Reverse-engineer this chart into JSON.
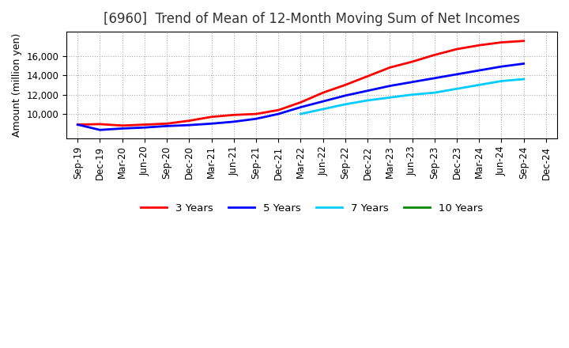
{
  "title": "[6960]  Trend of Mean of 12-Month Moving Sum of Net Incomes",
  "ylabel": "Amount (million yen)",
  "background_color": "#ffffff",
  "plot_background_color": "#ffffff",
  "grid_color": "#aaaaaa",
  "x_labels": [
    "Sep-19",
    "Dec-19",
    "Mar-20",
    "Jun-20",
    "Sep-20",
    "Dec-20",
    "Mar-21",
    "Jun-21",
    "Sep-21",
    "Dec-21",
    "Mar-22",
    "Jun-22",
    "Sep-22",
    "Dec-22",
    "Mar-23",
    "Jun-23",
    "Sep-23",
    "Dec-23",
    "Mar-24",
    "Jun-24",
    "Sep-24",
    "Dec-24"
  ],
  "ylim": [
    7500,
    18500
  ],
  "yticks": [
    10000,
    12000,
    14000,
    16000
  ],
  "series": {
    "3 Years": {
      "color": "#ff0000",
      "data_x": [
        0,
        1,
        2,
        3,
        4,
        5,
        6,
        7,
        8,
        9,
        10,
        11,
        12,
        13,
        14,
        15,
        16,
        17,
        18,
        19,
        20
      ],
      "data_y": [
        8900,
        8950,
        8800,
        8900,
        9000,
        9300,
        9700,
        9900,
        10000,
        10400,
        11200,
        12200,
        13000,
        13900,
        14800,
        15400,
        16100,
        16700,
        17100,
        17400,
        17550
      ]
    },
    "5 Years": {
      "color": "#0000ff",
      "data_x": [
        0,
        1,
        2,
        3,
        4,
        5,
        6,
        7,
        8,
        9,
        10,
        11,
        12,
        13,
        14,
        15,
        16,
        17,
        18,
        19,
        20
      ],
      "data_y": [
        8900,
        8350,
        8500,
        8600,
        8750,
        8850,
        9000,
        9200,
        9500,
        10000,
        10700,
        11300,
        11900,
        12400,
        12900,
        13300,
        13700,
        14100,
        14500,
        14900,
        15200
      ]
    },
    "7 Years": {
      "color": "#00ccff",
      "data_x": [
        10,
        11,
        12,
        13,
        14,
        15,
        16,
        17,
        18,
        19,
        20
      ],
      "data_y": [
        10000,
        10500,
        11000,
        11400,
        11700,
        12000,
        12200,
        12600,
        13000,
        13400,
        13600
      ]
    },
    "10 Years": {
      "color": "#008800",
      "data_x": [],
      "data_y": []
    }
  },
  "legend_order": [
    "3 Years",
    "5 Years",
    "7 Years",
    "10 Years"
  ],
  "title_fontsize": 12,
  "title_color": "#333333",
  "axis_fontsize": 9,
  "tick_fontsize": 8.5
}
